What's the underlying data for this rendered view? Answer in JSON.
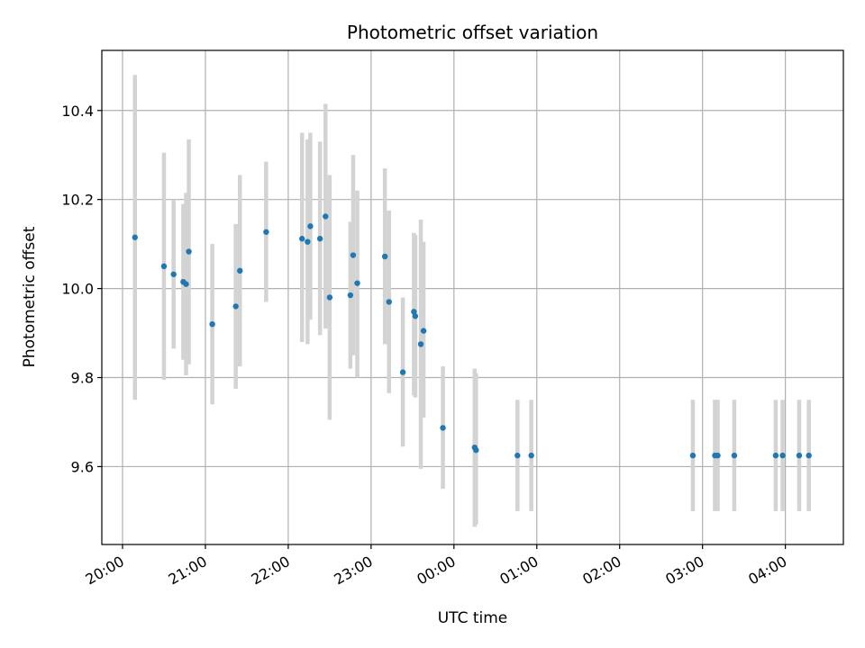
{
  "chart_data": {
    "type": "scatter",
    "title": "Photometric offset variation",
    "xlabel": "UTC time",
    "ylabel": "Photometric offset",
    "x_axis": "time",
    "xlim": [
      "19:45",
      "04:42"
    ],
    "ylim": [
      9.425,
      10.535
    ],
    "grid": true,
    "x_tick_labels": [
      "20:00",
      "21:00",
      "22:00",
      "23:00",
      "00:00",
      "01:00",
      "02:00",
      "03:00",
      "04:00"
    ],
    "y_ticks": [
      9.6,
      9.8,
      10.0,
      10.2,
      10.4
    ],
    "y_tick_labels": [
      "9.6",
      "9.8",
      "10.0",
      "10.2",
      "10.4"
    ],
    "errorbar_color": "#d3d3d3",
    "marker_color": "#1f77b4",
    "points": [
      {
        "time": "20:09",
        "y": 10.115,
        "low": 9.75,
        "high": 10.48
      },
      {
        "time": "20:30",
        "y": 10.05,
        "low": 9.795,
        "high": 10.305
      },
      {
        "time": "20:37",
        "y": 10.032,
        "low": 9.865,
        "high": 10.2
      },
      {
        "time": "20:44",
        "y": 10.015,
        "low": 9.84,
        "high": 10.19
      },
      {
        "time": "20:46",
        "y": 10.01,
        "low": 9.805,
        "high": 10.215
      },
      {
        "time": "20:48",
        "y": 10.083,
        "low": 9.83,
        "high": 10.335
      },
      {
        "time": "21:05",
        "y": 9.92,
        "low": 9.74,
        "high": 10.1
      },
      {
        "time": "21:22",
        "y": 9.96,
        "low": 9.775,
        "high": 10.145
      },
      {
        "time": "21:25",
        "y": 10.04,
        "low": 9.825,
        "high": 10.255
      },
      {
        "time": "21:44",
        "y": 10.127,
        "low": 9.97,
        "high": 10.285
      },
      {
        "time": "22:10",
        "y": 10.112,
        "low": 9.88,
        "high": 10.35
      },
      {
        "time": "22:14",
        "y": 10.105,
        "low": 9.875,
        "high": 10.335
      },
      {
        "time": "22:16",
        "y": 10.14,
        "low": 9.93,
        "high": 10.35
      },
      {
        "time": "22:23",
        "y": 10.112,
        "low": 9.895,
        "high": 10.33
      },
      {
        "time": "22:27",
        "y": 10.162,
        "low": 9.91,
        "high": 10.415
      },
      {
        "time": "22:30",
        "y": 9.98,
        "low": 9.705,
        "high": 10.255
      },
      {
        "time": "22:45",
        "y": 9.985,
        "low": 9.82,
        "high": 10.15
      },
      {
        "time": "22:47",
        "y": 10.075,
        "low": 9.85,
        "high": 10.3
      },
      {
        "time": "22:50",
        "y": 10.012,
        "low": 9.8,
        "high": 10.22
      },
      {
        "time": "23:10",
        "y": 10.072,
        "low": 9.875,
        "high": 10.27
      },
      {
        "time": "23:13",
        "y": 9.97,
        "low": 9.765,
        "high": 10.175
      },
      {
        "time": "23:23",
        "y": 9.812,
        "low": 9.645,
        "high": 9.98
      },
      {
        "time": "23:31",
        "y": 9.948,
        "low": 9.76,
        "high": 10.125
      },
      {
        "time": "23:32",
        "y": 9.938,
        "low": 9.755,
        "high": 10.12
      },
      {
        "time": "23:36",
        "y": 9.875,
        "low": 9.595,
        "high": 10.155
      },
      {
        "time": "23:38",
        "y": 9.905,
        "low": 9.71,
        "high": 10.105
      },
      {
        "time": "23:52",
        "y": 9.687,
        "low": 9.55,
        "high": 9.825
      },
      {
        "time": "00:15",
        "y": 9.643,
        "low": 9.465,
        "high": 9.82
      },
      {
        "time": "00:16",
        "y": 9.637,
        "low": 9.47,
        "high": 9.81
      },
      {
        "time": "00:46",
        "y": 9.625,
        "low": 9.5,
        "high": 9.75
      },
      {
        "time": "00:56",
        "y": 9.625,
        "low": 9.5,
        "high": 9.75
      },
      {
        "time": "02:53",
        "y": 9.625,
        "low": 9.5,
        "high": 9.75
      },
      {
        "time": "03:09",
        "y": 9.625,
        "low": 9.5,
        "high": 9.75
      },
      {
        "time": "03:11",
        "y": 9.625,
        "low": 9.5,
        "high": 9.75
      },
      {
        "time": "03:23",
        "y": 9.625,
        "low": 9.5,
        "high": 9.75
      },
      {
        "time": "03:53",
        "y": 9.625,
        "low": 9.5,
        "high": 9.75
      },
      {
        "time": "03:58",
        "y": 9.625,
        "low": 9.5,
        "high": 9.75
      },
      {
        "time": "04:10",
        "y": 9.625,
        "low": 9.5,
        "high": 9.75
      },
      {
        "time": "04:17",
        "y": 9.625,
        "low": 9.5,
        "high": 9.75
      }
    ]
  }
}
